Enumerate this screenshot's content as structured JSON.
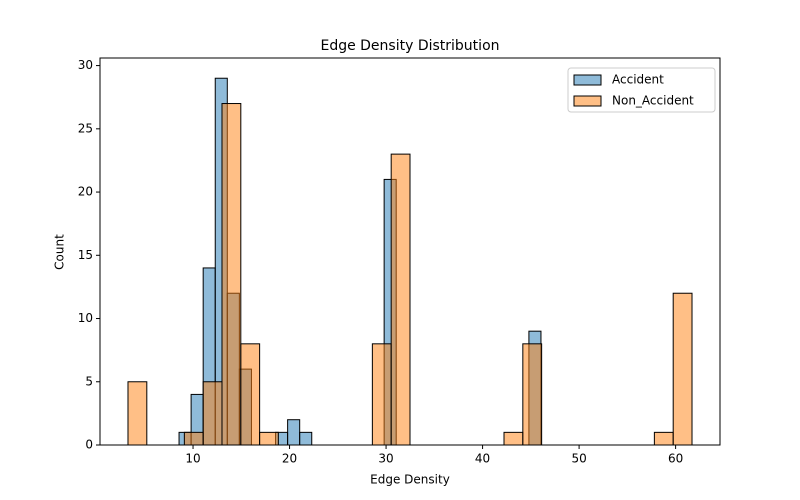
{
  "chart_data": {
    "type": "histogram",
    "title": "Edge Density Distribution",
    "x_label": "Edge Density",
    "y_label": "Count",
    "xlim": [
      0.36,
      64.6
    ],
    "ylim": [
      0,
      30.6
    ],
    "xticks": [
      10,
      20,
      30,
      40,
      50,
      60
    ],
    "yticks": [
      0,
      5,
      10,
      15,
      20,
      25,
      30
    ],
    "legend": "upper right",
    "series": [
      {
        "name": "Accident",
        "color": "#1f77b4",
        "bins": [
          8.55,
          9.8,
          11.05,
          12.3,
          13.55,
          14.8,
          16.05,
          17.3,
          18.55,
          19.8,
          21.05,
          22.3,
          23.55,
          24.8,
          26.05,
          27.3,
          28.55,
          29.8,
          31.05,
          32.3,
          33.55,
          34.8,
          36.05,
          37.3,
          38.55,
          39.8,
          41.05,
          42.3,
          43.55,
          44.8,
          46.05
        ],
        "values": [
          1,
          4,
          14,
          29,
          12,
          6,
          0,
          0,
          1,
          2,
          1,
          0,
          0,
          0,
          0,
          0,
          0,
          21,
          0,
          0,
          0,
          0,
          0,
          0,
          0,
          0,
          0,
          0,
          0,
          9
        ]
      },
      {
        "name": "Non_Accident",
        "color": "#ff7f0e",
        "bins": [
          3.26,
          5.21,
          7.16,
          9.1,
          11.05,
          13.0,
          14.95,
          16.9,
          18.84,
          20.79,
          22.74,
          24.69,
          26.64,
          28.58,
          30.53,
          32.48,
          34.43,
          36.38,
          38.32,
          40.27,
          42.22,
          44.17,
          46.12,
          48.06,
          50.01,
          51.96,
          53.91,
          55.86,
          57.8,
          59.75,
          61.7
        ],
        "values": [
          5,
          0,
          0,
          1,
          5,
          27,
          8,
          1,
          0,
          0,
          0,
          0,
          0,
          8,
          23,
          0,
          0,
          0,
          0,
          0,
          1,
          8,
          0,
          0,
          0,
          0,
          0,
          0,
          1,
          12
        ]
      }
    ]
  }
}
